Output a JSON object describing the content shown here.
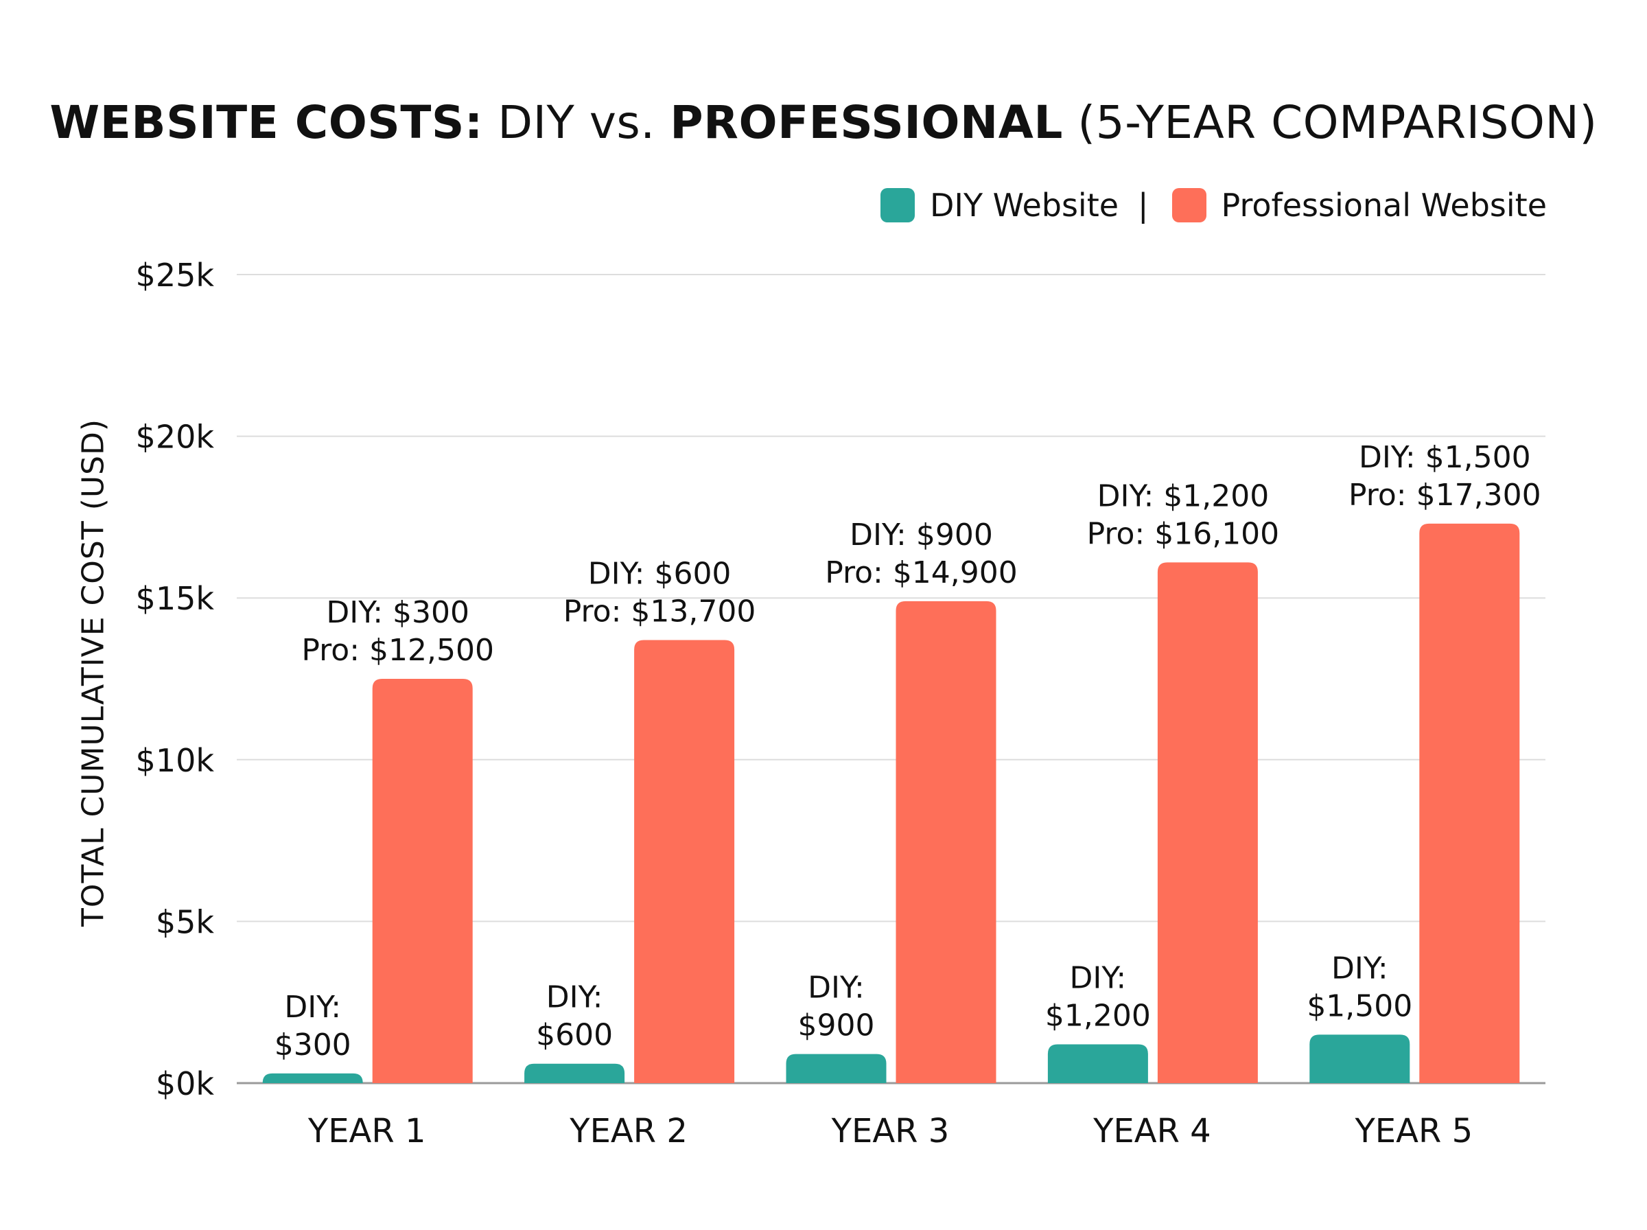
{
  "title": {
    "parts": [
      "WEBSITE COSTS:",
      "DIY vs.",
      "PROFESSIONAL",
      "(5-YEAR COMPARISON)"
    ]
  },
  "legend": {
    "separator": "|"
  },
  "chart_data": {
    "type": "bar",
    "title": "WEBSITE COSTS: DIY vs. PROFESSIONAL (5-YEAR COMPARISON)",
    "xlabel": "",
    "ylabel": "TOTAL CUMULATIVE COST (USD)",
    "categories": [
      "YEAR 1",
      "YEAR 2",
      "YEAR 3",
      "YEAR 4",
      "YEAR 5"
    ],
    "series": [
      {
        "name": "DIY Website",
        "color": "#2aa69a",
        "values": [
          300,
          600,
          900,
          1200,
          1500
        ]
      },
      {
        "name": "Professional Website",
        "color": "#fe6f59",
        "values": [
          12500,
          13700,
          14900,
          16100,
          17300
        ]
      }
    ],
    "ylim": [
      0,
      25000
    ],
    "yticks": [
      0,
      5000,
      10000,
      15000,
      20000,
      25000
    ],
    "ytick_labels": [
      "$0k",
      "$5k",
      "$10k",
      "$15k",
      "$20k",
      "$25k"
    ],
    "grid": true,
    "legend_position": "top-right",
    "diy_labels": [
      [
        "DIY:",
        "$300"
      ],
      [
        "DIY:",
        "$600"
      ],
      [
        "DIY:",
        "$900"
      ],
      [
        "DIY:",
        "$1,200"
      ],
      [
        "DIY:",
        "$1,500"
      ]
    ],
    "pro_labels": [
      [
        "DIY: $300",
        "Pro: $12,500"
      ],
      [
        "DIY: $600",
        "Pro: $13,700"
      ],
      [
        "DIY: $900",
        "Pro: $14,900"
      ],
      [
        "DIY: $1,200",
        "Pro: $16,100"
      ],
      [
        "DIY: $1,500",
        "Pro: $17,300"
      ]
    ]
  }
}
